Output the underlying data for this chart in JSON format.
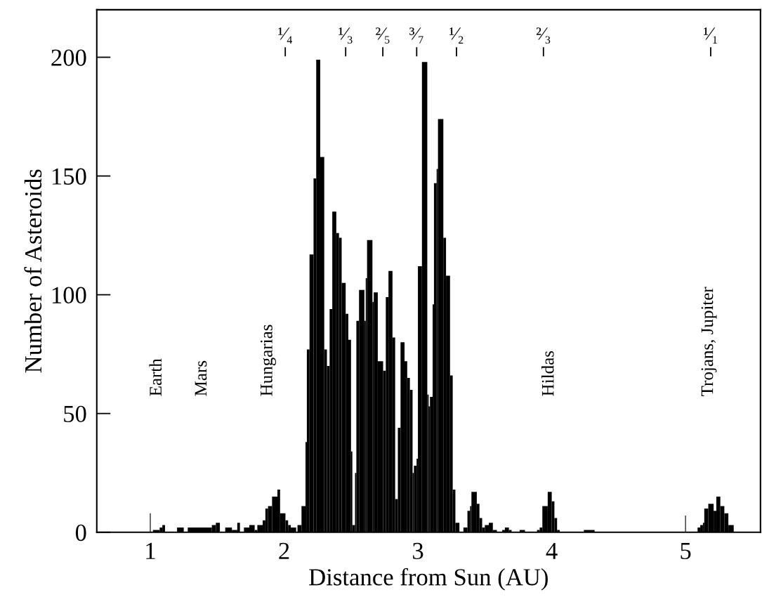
{
  "chart_data": {
    "type": "histogram",
    "xlabel": "Distance from Sun (AU)",
    "ylabel": "Number of Asteroids",
    "color": "#000000",
    "bins": [
      1.02,
      1.07,
      1.09,
      1.11,
      1.2,
      1.25,
      1.28,
      1.46,
      1.49,
      1.52,
      1.56,
      1.61,
      1.65,
      1.67,
      1.7,
      1.74,
      1.78,
      1.8,
      1.84,
      1.86,
      1.88,
      1.91,
      1.95,
      1.97,
      2.01,
      2.03,
      2.05,
      2.09,
      2.1,
      2.13,
      2.16,
      2.17,
      2.19,
      2.22,
      2.24,
      2.27,
      2.3,
      2.32,
      2.34,
      2.36,
      2.39,
      2.41,
      2.43,
      2.46,
      2.48,
      2.5,
      2.51,
      2.53,
      2.54,
      2.56,
      2.6,
      2.61,
      2.62,
      2.66,
      2.67,
      2.7,
      2.74,
      2.76,
      2.78,
      2.81,
      2.83,
      2.85,
      2.87,
      2.9,
      2.92,
      2.94,
      2.96,
      2.97,
      2.99,
      3.0,
      3.03,
      3.07,
      3.08,
      3.09,
      3.11,
      3.12,
      3.14,
      3.15,
      3.19,
      3.21,
      3.24,
      3.26,
      3.28,
      3.31,
      3.34,
      3.37,
      3.39,
      3.4,
      3.44,
      3.46,
      3.48,
      3.5,
      3.53,
      3.56,
      3.59,
      3.63,
      3.65,
      3.68,
      3.7,
      3.76,
      3.8,
      3.89,
      3.91,
      3.93,
      3.97,
      4.0,
      4.02,
      4.04,
      4.06,
      4.24,
      4.32,
      5.09,
      5.11,
      5.13,
      5.14,
      5.17,
      5.21,
      5.23,
      5.26,
      5.29,
      5.32,
      5.36
    ],
    "values": [
      1,
      2,
      3,
      0,
      2,
      0,
      2,
      3,
      4,
      0,
      2,
      1,
      4,
      0,
      2,
      3,
      1,
      3,
      5,
      10,
      11,
      15,
      18,
      8,
      5,
      3,
      2,
      0,
      3,
      11,
      38,
      77,
      117,
      149,
      199,
      158,
      77,
      70,
      94,
      135,
      126,
      124,
      105,
      92,
      81,
      34,
      3,
      25,
      89,
      102,
      89,
      107,
      123,
      97,
      101,
      72,
      68,
      99,
      110,
      82,
      14,
      44,
      80,
      72,
      65,
      60,
      25,
      28,
      31,
      112,
      198,
      58,
      53,
      57,
      96,
      147,
      153,
      174,
      124,
      108,
      66,
      18,
      4,
      0,
      2,
      9,
      11,
      17,
      12,
      6,
      2,
      3,
      4,
      1,
      0,
      1,
      2,
      1,
      0,
      1,
      0,
      1,
      2,
      11,
      17,
      13,
      6,
      1,
      0,
      1,
      0,
      2,
      3,
      4,
      10,
      12,
      9,
      15,
      11,
      8,
      3
    ],
    "series": [
      {
        "type": "bar",
        "x": [
          1,
          5
        ],
        "values": [
          8,
          7
        ],
        "color": "#404040"
      }
    ],
    "xlim": [
      0.6,
      5.56
    ],
    "ylim": [
      0,
      220
    ],
    "xticks": [
      1,
      2,
      3,
      4,
      5
    ],
    "yticks": [
      0,
      50,
      100,
      150,
      200
    ],
    "annotations": [
      "Earth",
      "Mars",
      "Hungarias",
      "Hildas",
      "Trojans, Jupiter",
      "¹⁄₄",
      "¹⁄₃",
      "²⁄₅",
      "³⁄₇",
      "¹⁄₂",
      "²⁄₃",
      "¹⁄₁"
    ]
  }
}
